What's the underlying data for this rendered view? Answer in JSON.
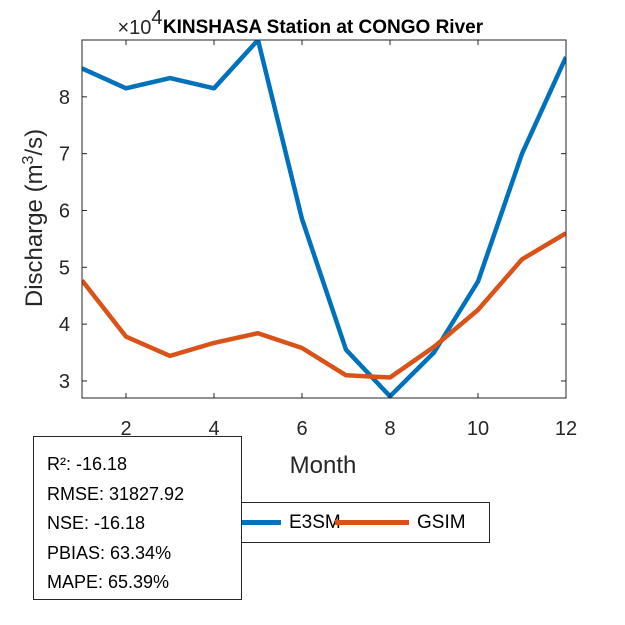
{
  "chart_data": {
    "type": "line",
    "title": "KINSHASA  Station at  CONGO  River",
    "xlabel": "Month",
    "ylabel_prefix": "Discharge (m",
    "ylabel_sup": "3",
    "ylabel_suffix": "/s)",
    "y_exponent_base": "×10",
    "y_exponent_power": "4",
    "xlim": [
      1,
      12
    ],
    "ylim": [
      2.7,
      9.0
    ],
    "x_ticks": [
      2,
      4,
      6,
      8,
      10,
      12
    ],
    "y_ticks": [
      3,
      4,
      5,
      6,
      7,
      8
    ],
    "x": [
      1,
      2,
      3,
      4,
      5,
      6,
      7,
      8,
      9,
      10,
      11,
      12
    ],
    "series": [
      {
        "name": "E3SM",
        "color": "#0072BD",
        "values": [
          8.5,
          8.15,
          8.33,
          8.15,
          9.0,
          5.85,
          3.55,
          2.73,
          3.5,
          4.75,
          7.0,
          8.7
        ]
      },
      {
        "name": "GSIM",
        "color": "#D95319",
        "values": [
          4.77,
          3.78,
          3.44,
          3.67,
          3.84,
          3.58,
          3.1,
          3.06,
          3.6,
          4.25,
          5.14,
          5.6
        ]
      }
    ]
  },
  "legend": {
    "items": [
      {
        "label": "E3SM",
        "color": "#0072BD"
      },
      {
        "label": "GSIM",
        "color": "#D95319"
      }
    ]
  },
  "stats": {
    "r2": "R²: -16.18",
    "rmse": "RMSE: 31827.92",
    "nse": "NSE: -16.18",
    "pbias": "PBIAS: 63.34%",
    "mape": "MAPE: 65.39%"
  }
}
